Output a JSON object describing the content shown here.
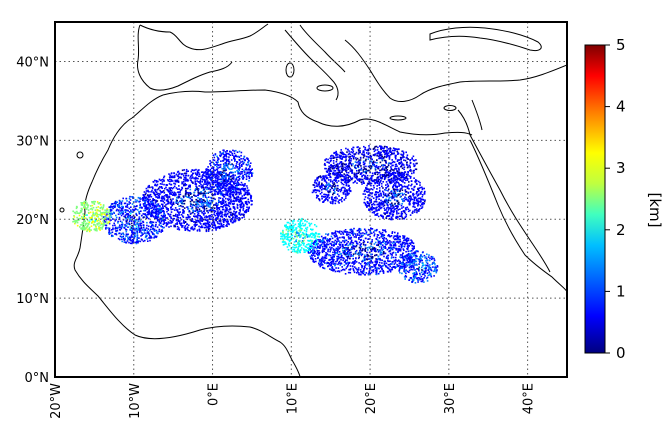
{
  "map": {
    "lon_range": [
      -20,
      45
    ],
    "lat_range": [
      0,
      45
    ],
    "grid": "dotted",
    "lat_ticks": [
      {
        "value": 0,
        "label": "0°N"
      },
      {
        "value": 10,
        "label": "10°N"
      },
      {
        "value": 20,
        "label": "20°N"
      },
      {
        "value": 30,
        "label": "30°N"
      },
      {
        "value": 40,
        "label": "40°N"
      }
    ],
    "lon_ticks": [
      {
        "value": -20,
        "label": "20°W"
      },
      {
        "value": -10,
        "label": "10°W"
      },
      {
        "value": 0,
        "label": "0°E"
      },
      {
        "value": 10,
        "label": "10°E"
      },
      {
        "value": 20,
        "label": "20°E"
      },
      {
        "value": 30,
        "label": "30°E"
      },
      {
        "value": 40,
        "label": "40°E"
      }
    ]
  },
  "colorbar": {
    "unit_label": "[km]",
    "range": [
      0,
      5
    ],
    "tick_labels": [
      "0",
      "1",
      "2",
      "3",
      "4",
      "5"
    ],
    "colors": [
      "#00007f",
      "#0000ff",
      "#007fff",
      "#00ffff",
      "#7fff7f",
      "#ffff00",
      "#ff7f00",
      "#ff0000",
      "#7f0000"
    ]
  },
  "data_patches": [
    {
      "lon": -2,
      "lat": 22.5,
      "rx": 7,
      "ry": 4,
      "value": 0.6
    },
    {
      "lon": -10,
      "lat": 20,
      "rx": 4,
      "ry": 3,
      "value": 0.8
    },
    {
      "lon": -15.5,
      "lat": 20.5,
      "rx": 2.5,
      "ry": 2,
      "value": 2.6
    },
    {
      "lon": 2,
      "lat": 26,
      "rx": 3,
      "ry": 3,
      "value": 0.7
    },
    {
      "lon": 23,
      "lat": 23,
      "rx": 4,
      "ry": 3,
      "value": 0.6
    },
    {
      "lon": 20,
      "lat": 27,
      "rx": 6,
      "ry": 2.5,
      "value": 0.5
    },
    {
      "lon": 19,
      "lat": 16,
      "rx": 7,
      "ry": 3,
      "value": 0.7
    },
    {
      "lon": 11,
      "lat": 18,
      "rx": 2.5,
      "ry": 2.2,
      "value": 1.9
    },
    {
      "lon": 26,
      "lat": 14,
      "rx": 2.5,
      "ry": 2,
      "value": 0.9
    },
    {
      "lon": 15,
      "lat": 24,
      "rx": 2.5,
      "ry": 2,
      "value": 0.6
    }
  ]
}
